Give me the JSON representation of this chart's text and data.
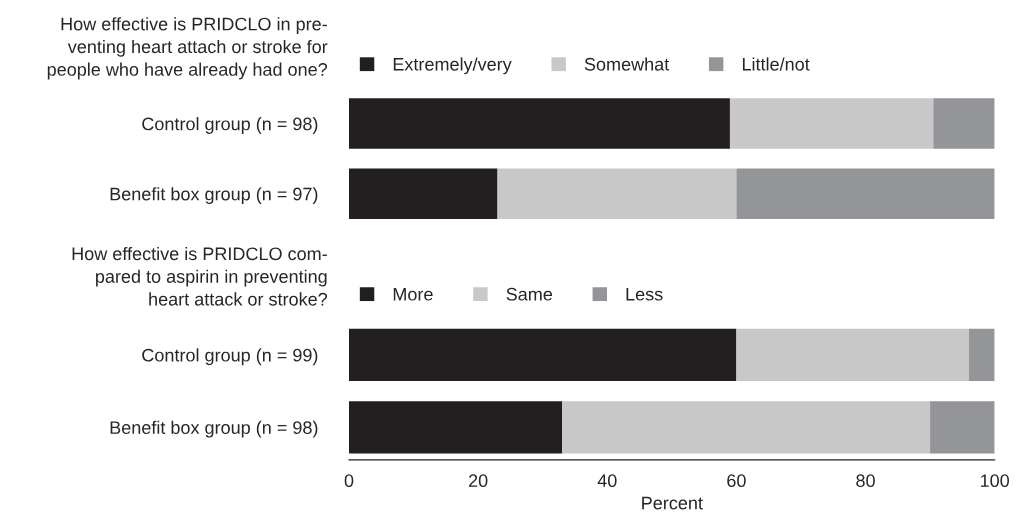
{
  "chart_data": [
    {
      "type": "bar",
      "orientation": "horizontal",
      "stacked": true,
      "title": "How effective is PRIDCLO in pre-\nventing heart attach or stroke for\npeople who have already had one?",
      "categories": [
        "Control group (n = 98)",
        "Benefit box group (n = 97)"
      ],
      "series": [
        {
          "name": "Extremely/very",
          "color": "#231f20",
          "values": [
            59,
            23
          ]
        },
        {
          "name": "Somewhat",
          "color": "#c8c8c9",
          "values": [
            31.5,
            37
          ]
        },
        {
          "name": "Little/not",
          "color": "#939598",
          "values": [
            9.5,
            40
          ]
        }
      ],
      "xlim": [
        0,
        100
      ],
      "tick_labels": "y",
      "legend": "top",
      "grid": false
    },
    {
      "type": "bar",
      "orientation": "horizontal",
      "stacked": true,
      "title": "How effective is PRIDCLO com-\npared to aspirin in preventing\nheart attack or stroke?",
      "categories": [
        "Control group (n = 99)",
        "Benefit box group (n = 98)"
      ],
      "series": [
        {
          "name": "More",
          "color": "#231f20",
          "values": [
            60,
            33
          ]
        },
        {
          "name": "Same",
          "color": "#c8c8c9",
          "values": [
            36,
            57
          ]
        },
        {
          "name": "Less",
          "color": "#939598",
          "values": [
            4,
            10
          ]
        }
      ],
      "xlim": [
        0,
        100
      ],
      "xticks": [
        0,
        20,
        40,
        60,
        80,
        100
      ],
      "xlabel": "Percent",
      "legend": "top",
      "grid": false
    }
  ]
}
